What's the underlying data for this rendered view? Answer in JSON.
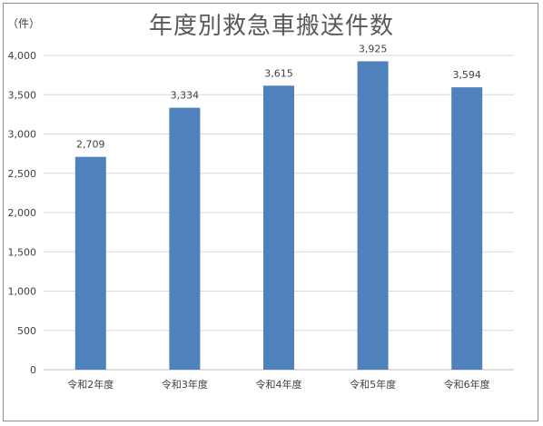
{
  "chart_data": {
    "type": "bar",
    "title": "年度別救急車搬送件数",
    "unit_label": "（件）",
    "categories": [
      "令和2年度",
      "令和3年度",
      "令和4年度",
      "令和5年度",
      "令和6年度"
    ],
    "values": [
      2709,
      3334,
      3615,
      3925,
      3594
    ],
    "data_labels": [
      "2,709",
      "3,334",
      "3,615",
      "3,925",
      "3,594"
    ],
    "ylim": [
      0,
      4000
    ],
    "yticks": [
      0,
      500,
      1000,
      1500,
      2000,
      2500,
      3000,
      3500,
      4000
    ],
    "ytick_labels": [
      "0",
      "500",
      "1,000",
      "1,500",
      "2,000",
      "2,500",
      "3,000",
      "3,500",
      "4,000"
    ],
    "grid": true,
    "bar_color": "#4f81bd"
  }
}
